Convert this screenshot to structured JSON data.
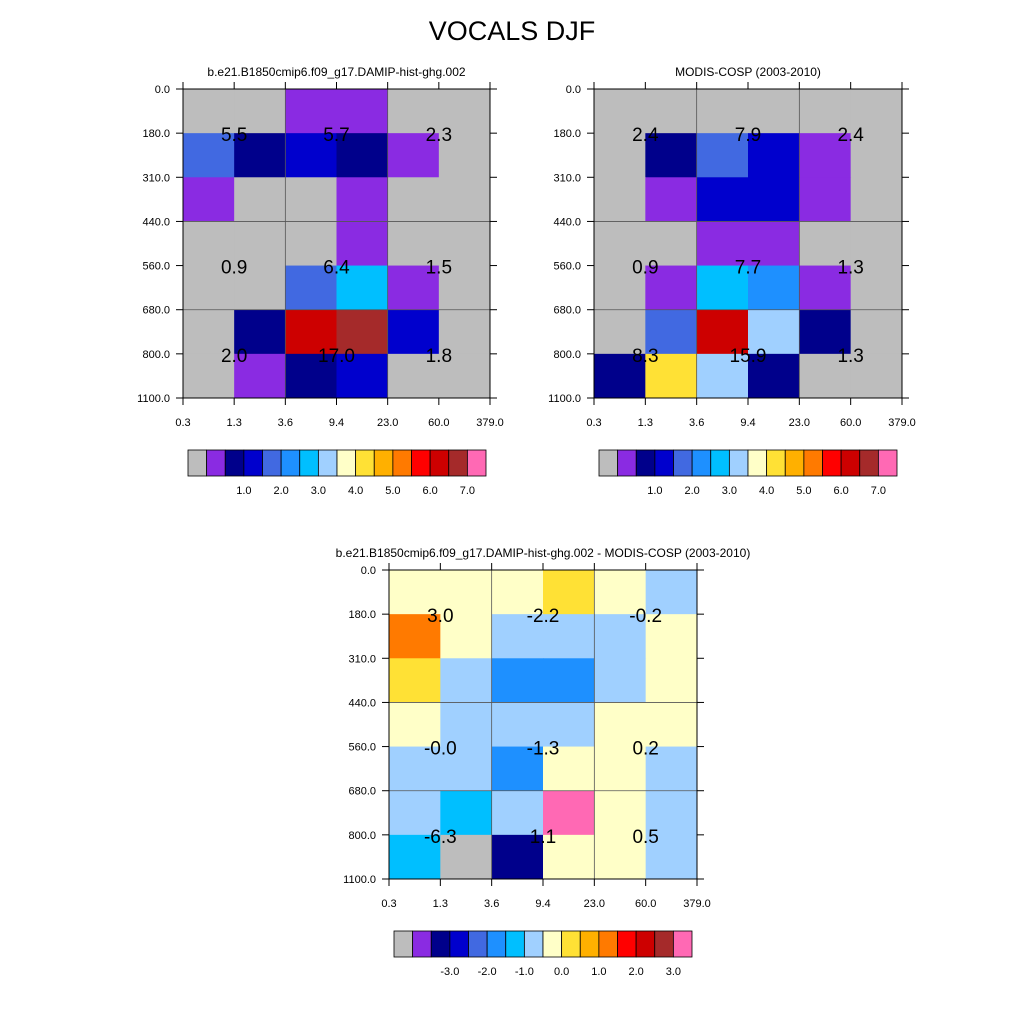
{
  "figure": {
    "title": "VOCALS DJF"
  },
  "scales": {
    "abs": [
      "#bdbdbd",
      "#8a2be2",
      "#00008b",
      "#0000cd",
      "#4169e1",
      "#1e90ff",
      "#00bfff",
      "#a0d0ff",
      "#ffffc8",
      "#ffe135",
      "#ffb000",
      "#ff7a00",
      "#ff0000",
      "#cd0000",
      "#a52a2a",
      "#ff69b4"
    ],
    "diff": [
      "#bdbdbd",
      "#8a2be2",
      "#00008b",
      "#0000cd",
      "#4169e1",
      "#1e90ff",
      "#00bfff",
      "#a0d0ff",
      "#ffffc8",
      "#ffe135",
      "#ffb000",
      "#ff7a00",
      "#ff0000",
      "#cd0000",
      "#a52a2a",
      "#ff69b4"
    ]
  },
  "chart_data": [
    {
      "type": "heatmap",
      "title": "b.e21.B1850cmip6.f09_g17.DAMIP-hist-ghg.002",
      "x_tick_labels": [
        "0.3",
        "1.3",
        "3.6",
        "9.4",
        "23.0",
        "60.0",
        "379.0"
      ],
      "y_tick_labels": [
        "0.0",
        "180.0",
        "310.0",
        "440.0",
        "560.0",
        "680.0",
        "800.0",
        "1100.0"
      ],
      "colorbar_scale": "abs",
      "colorbar_labels": [
        "1.0",
        "2.0",
        "3.0",
        "4.0",
        "5.0",
        "6.0",
        "7.0"
      ],
      "color_index": [
        [
          0,
          0,
          1,
          1,
          0,
          0
        ],
        [
          4,
          2,
          3,
          2,
          1,
          0
        ],
        [
          1,
          0,
          0,
          1,
          0,
          0
        ],
        [
          0,
          0,
          0,
          1,
          0,
          0
        ],
        [
          0,
          0,
          4,
          6,
          1,
          0
        ],
        [
          0,
          2,
          13,
          14,
          3,
          0
        ],
        [
          0,
          1,
          2,
          3,
          0,
          0
        ]
      ],
      "value_labels": [
        {
          "text": "5.5",
          "col": 0,
          "row": 0
        },
        {
          "text": "5.7",
          "col": 1,
          "row": 0
        },
        {
          "text": "2.3",
          "col": 2,
          "row": 0
        },
        {
          "text": "0.9",
          "col": 0,
          "row": 1
        },
        {
          "text": "6.4",
          "col": 1,
          "row": 1
        },
        {
          "text": "1.5",
          "col": 2,
          "row": 1
        },
        {
          "text": "2.0",
          "col": 0,
          "row": 2
        },
        {
          "text": "17.0",
          "col": 1,
          "row": 2
        },
        {
          "text": "1.8",
          "col": 2,
          "row": 2
        }
      ],
      "grid": true
    },
    {
      "type": "heatmap",
      "title": "MODIS-COSP (2003-2010)",
      "x_tick_labels": [
        "0.3",
        "1.3",
        "3.6",
        "9.4",
        "23.0",
        "60.0",
        "379.0"
      ],
      "y_tick_labels": [
        "0.0",
        "180.0",
        "310.0",
        "440.0",
        "560.0",
        "680.0",
        "800.0",
        "1100.0"
      ],
      "colorbar_scale": "abs",
      "colorbar_labels": [
        "1.0",
        "2.0",
        "3.0",
        "4.0",
        "5.0",
        "6.0",
        "7.0"
      ],
      "color_index": [
        [
          0,
          0,
          0,
          0,
          0,
          0
        ],
        [
          0,
          2,
          4,
          3,
          1,
          0
        ],
        [
          0,
          1,
          3,
          3,
          1,
          0
        ],
        [
          0,
          0,
          1,
          1,
          0,
          0
        ],
        [
          0,
          1,
          6,
          5,
          1,
          0
        ],
        [
          0,
          4,
          13,
          7,
          2,
          0
        ],
        [
          2,
          9,
          7,
          2,
          0,
          0
        ]
      ],
      "value_labels": [
        {
          "text": "2.4",
          "col": 0,
          "row": 0
        },
        {
          "text": "7.9",
          "col": 1,
          "row": 0
        },
        {
          "text": "2.4",
          "col": 2,
          "row": 0
        },
        {
          "text": "0.9",
          "col": 0,
          "row": 1
        },
        {
          "text": "7.7",
          "col": 1,
          "row": 1
        },
        {
          "text": "1.3",
          "col": 2,
          "row": 1
        },
        {
          "text": "8.3",
          "col": 0,
          "row": 2
        },
        {
          "text": "15.9",
          "col": 1,
          "row": 2
        },
        {
          "text": "1.3",
          "col": 2,
          "row": 2
        }
      ],
      "grid": true
    },
    {
      "type": "heatmap",
      "title": "b.e21.B1850cmip6.f09_g17.DAMIP-hist-ghg.002 - MODIS-COSP (2003-2010)",
      "x_tick_labels": [
        "0.3",
        "1.3",
        "3.6",
        "9.4",
        "23.0",
        "60.0",
        "379.0"
      ],
      "y_tick_labels": [
        "0.0",
        "180.0",
        "310.0",
        "440.0",
        "560.0",
        "680.0",
        "800.0",
        "1100.0"
      ],
      "colorbar_scale": "diff",
      "colorbar_labels": [
        "-3.0",
        "-2.0",
        "-1.0",
        "0.0",
        "1.0",
        "2.0",
        "3.0"
      ],
      "color_index": [
        [
          8,
          8,
          8,
          9,
          8,
          7
        ],
        [
          11,
          8,
          7,
          7,
          7,
          8
        ],
        [
          9,
          7,
          5,
          5,
          7,
          8
        ],
        [
          8,
          7,
          7,
          7,
          8,
          8
        ],
        [
          7,
          7,
          5,
          8,
          8,
          7
        ],
        [
          7,
          6,
          7,
          15,
          8,
          7
        ],
        [
          6,
          0,
          2,
          8,
          8,
          7
        ]
      ],
      "value_labels": [
        {
          "text": "3.0",
          "col": 0,
          "row": 0
        },
        {
          "text": "-2.2",
          "col": 1,
          "row": 0
        },
        {
          "text": "-0.2",
          "col": 2,
          "row": 0
        },
        {
          "text": "-0.0",
          "col": 0,
          "row": 1
        },
        {
          "text": "-1.3",
          "col": 1,
          "row": 1
        },
        {
          "text": "0.2",
          "col": 2,
          "row": 1
        },
        {
          "text": "-6.3",
          "col": 0,
          "row": 2
        },
        {
          "text": "1.1",
          "col": 1,
          "row": 2
        },
        {
          "text": "0.5",
          "col": 2,
          "row": 2
        }
      ],
      "grid": true
    }
  ]
}
